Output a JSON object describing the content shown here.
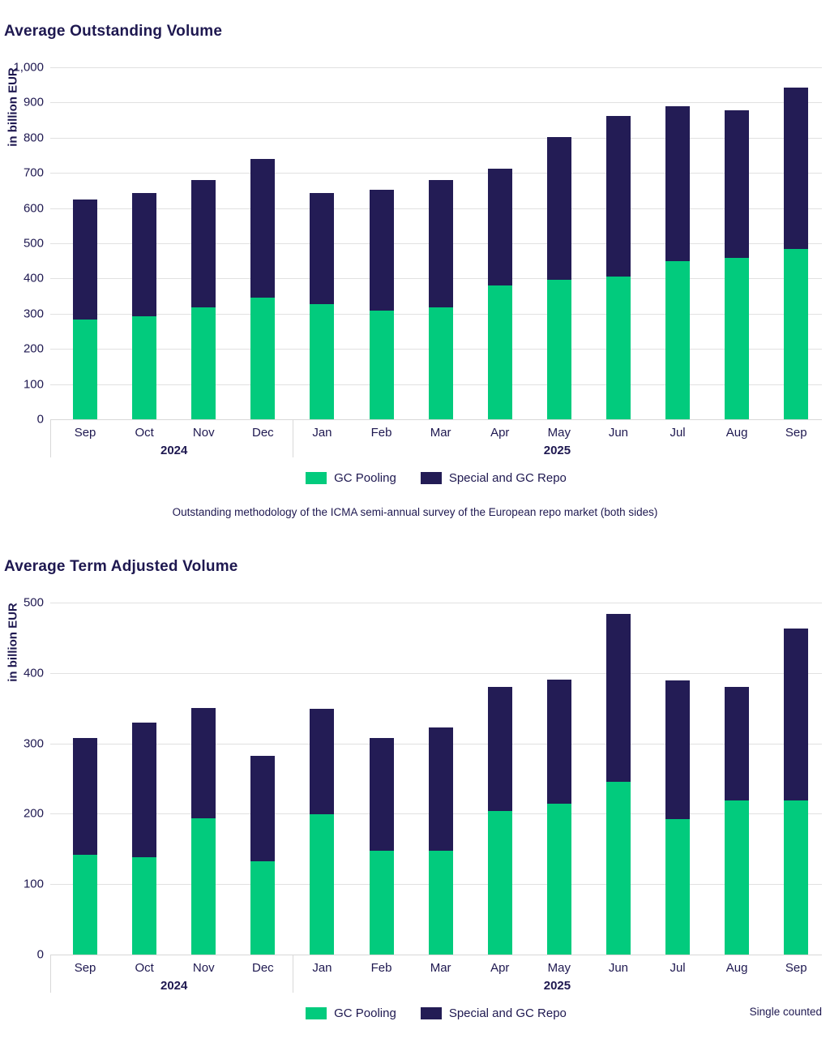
{
  "chart_data": [
    {
      "type": "bar",
      "stacked": true,
      "title": "Average Outstanding Volume",
      "ylabel": "in billion EUR",
      "ylim": [
        0,
        1000
      ],
      "ytick_step": 100,
      "ytick_labels": [
        "0",
        "100",
        "200",
        "300",
        "400",
        "500",
        "600",
        "700",
        "800",
        "900",
        "1,000"
      ],
      "grid": true,
      "legend_position": "bottom-center",
      "categories": [
        "Sep",
        "Oct",
        "Nov",
        "Dec",
        "Jan",
        "Feb",
        "Mar",
        "Apr",
        "May",
        "Jun",
        "Jul",
        "Aug",
        "Sep"
      ],
      "year_groups": [
        {
          "label": "2024",
          "start": 0,
          "end": 3
        },
        {
          "label": "2025",
          "start": 4,
          "end": 12
        }
      ],
      "series": [
        {
          "name": "GC Pooling",
          "color": "#02cb7d",
          "values": [
            283,
            292,
            318,
            345,
            328,
            308,
            317,
            380,
            396,
            405,
            449,
            458,
            485
          ]
        },
        {
          "name": "Special and GC Repo",
          "color": "#231c55",
          "values": [
            342,
            351,
            361,
            395,
            314,
            344,
            362,
            333,
            405,
            457,
            440,
            421,
            457
          ]
        }
      ],
      "footnote": "Outstanding methodology of the ICMA semi-annual survey of the European repo market (both sides)"
    },
    {
      "type": "bar",
      "stacked": true,
      "title": "Average Term Adjusted Volume",
      "ylabel": "in billion EUR",
      "ylim": [
        0,
        500
      ],
      "ytick_step": 100,
      "ytick_labels": [
        "0",
        "100",
        "200",
        "300",
        "400",
        "500"
      ],
      "grid": true,
      "legend_position": "bottom-center",
      "categories": [
        "Sep",
        "Oct",
        "Nov",
        "Dec",
        "Jan",
        "Feb",
        "Mar",
        "Apr",
        "May",
        "Jun",
        "Jul",
        "Aug",
        "Sep"
      ],
      "year_groups": [
        {
          "label": "2024",
          "start": 0,
          "end": 3
        },
        {
          "label": "2025",
          "start": 4,
          "end": 12
        }
      ],
      "series": [
        {
          "name": "GC Pooling",
          "color": "#02cb7d",
          "values": [
            142,
            138,
            194,
            132,
            199,
            147,
            147,
            204,
            214,
            245,
            192,
            219,
            219
          ]
        },
        {
          "name": "Special and GC Repo",
          "color": "#231c55",
          "values": [
            166,
            191,
            156,
            150,
            150,
            161,
            176,
            176,
            177,
            239,
            197,
            161,
            244
          ]
        }
      ],
      "note_right": "Single counted"
    }
  ]
}
